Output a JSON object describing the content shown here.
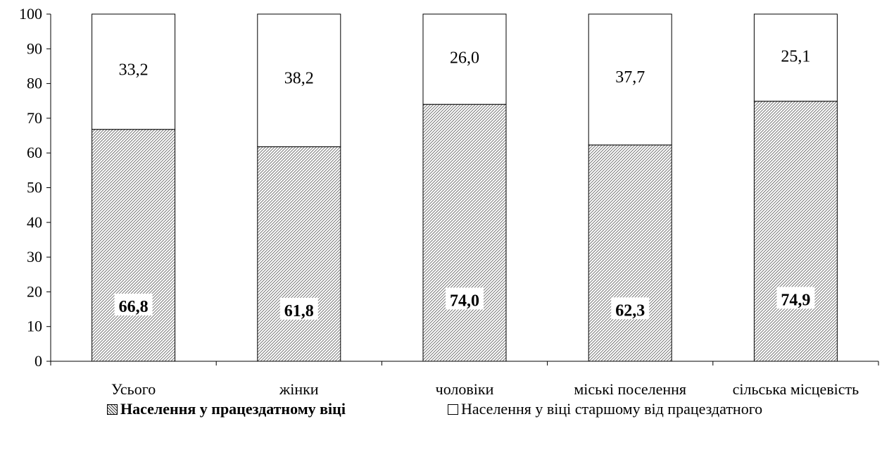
{
  "chart_data": {
    "type": "bar",
    "stacked": true,
    "percent": true,
    "categories": [
      "Усього",
      "жінки",
      "чоловіки",
      "міські поселення",
      "сільська місцевість"
    ],
    "series": [
      {
        "name": "Населення у працездатному віці",
        "values": [
          66.8,
          61.8,
          74.0,
          62.3,
          74.9
        ],
        "labels": [
          "66,8",
          "61,8",
          "74,0",
          "62,3",
          "74,9"
        ],
        "fill": "hatched",
        "label_bold": true
      },
      {
        "name": "Населення у віці старшому від працездатного",
        "values": [
          33.2,
          38.2,
          26.0,
          37.7,
          25.1
        ],
        "labels": [
          "33,2",
          "38,2",
          "26,0",
          "37,7",
          "25,1"
        ],
        "fill": "white",
        "label_bold": false
      }
    ],
    "ylim": [
      0,
      100
    ],
    "yticks": [
      0,
      10,
      20,
      30,
      40,
      50,
      60,
      70,
      80,
      90,
      100
    ],
    "grid": false,
    "legend_position": "bottom"
  }
}
